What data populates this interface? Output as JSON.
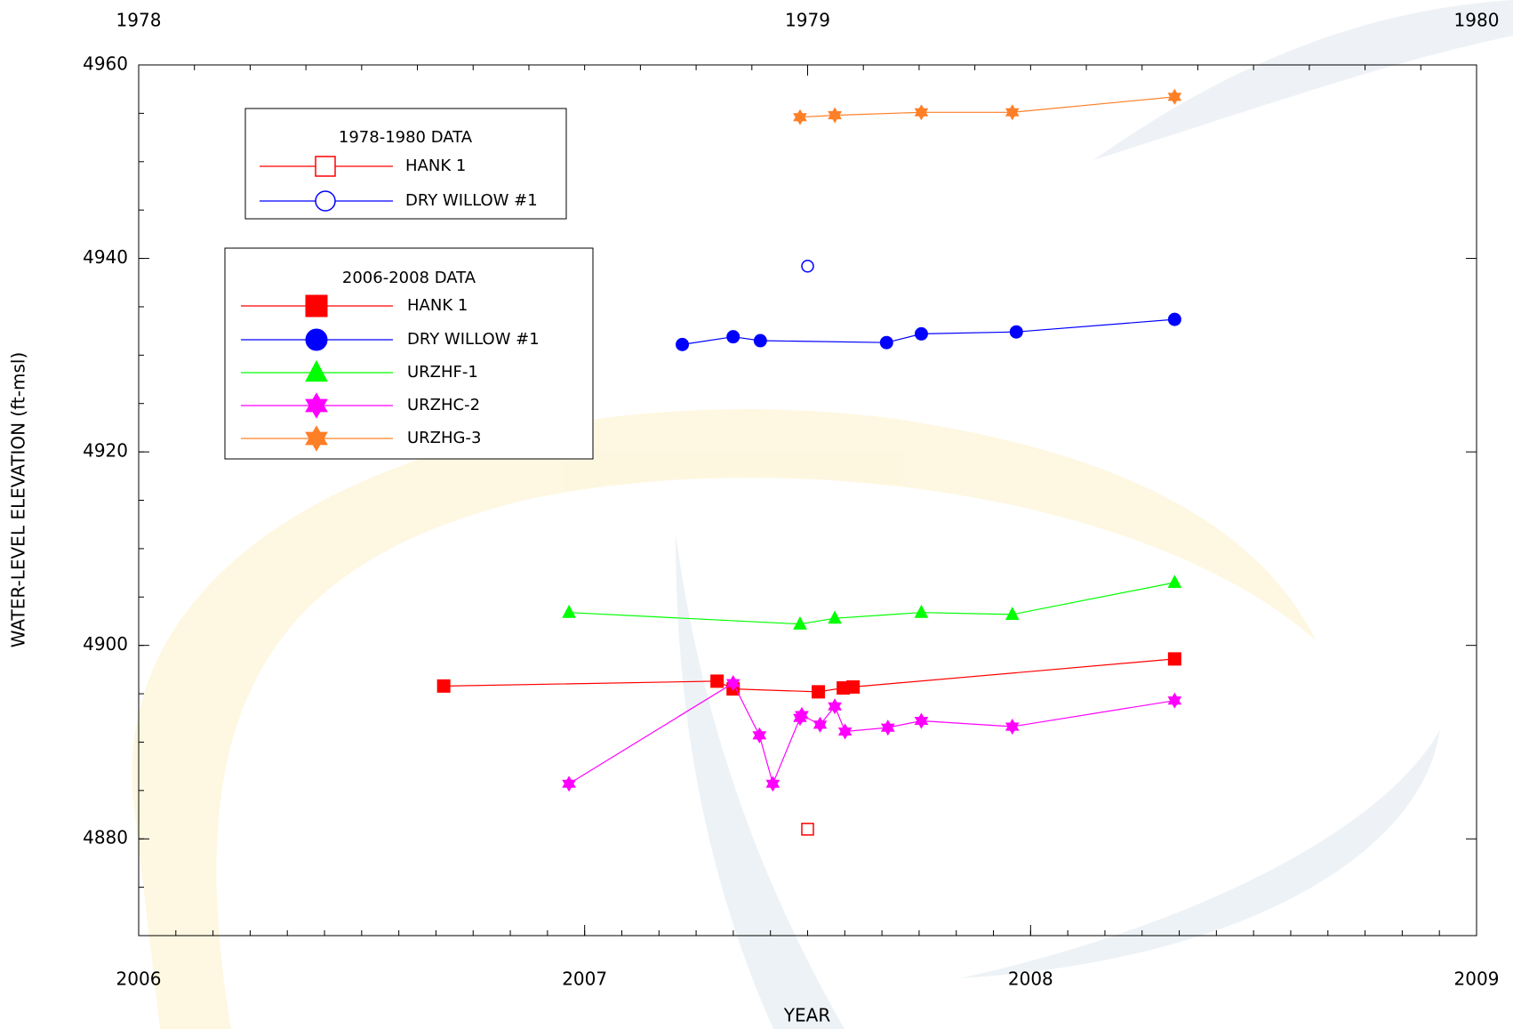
{
  "chart_data": {
    "type": "line",
    "x_label": "YEAR",
    "y_label": "WATER-LEVEL ELEVATION (ft-msl)",
    "xlim": [
      2006,
      2009
    ],
    "xticks": [
      2006,
      2007,
      2008,
      2009
    ],
    "x2lim": [
      1978,
      1980
    ],
    "x2ticks": [
      1978,
      1979,
      1980
    ],
    "ylim": [
      4870,
      4960
    ],
    "yticks": [
      4880,
      4900,
      4920,
      4940,
      4960
    ],
    "minor_ticks": {
      "x": 12,
      "x2": 12,
      "y": 4
    },
    "legend": "upper left",
    "groups": [
      {
        "title": "1978-1980 DATA",
        "axis": "x2",
        "series": [
          {
            "name": "HANK 1",
            "color": "#ff0000",
            "marker": "square",
            "filled": false,
            "x": [
              1979.0
            ],
            "values": [
              4881.0
            ]
          },
          {
            "name": "DRY WILLOW #1",
            "color": "#0000ff",
            "marker": "circle",
            "filled": false,
            "x": [
              1979.0
            ],
            "values": [
              4939.2
            ]
          }
        ]
      },
      {
        "title": "2006-2008 DATA",
        "axis": "x",
        "series": [
          {
            "name": "HANK 1",
            "color": "#ff0000",
            "marker": "square",
            "filled": true,
            "x": [
              2006.684,
              2007.297,
              2007.333,
              2007.524,
              2007.58,
              2007.602,
              2008.323
            ],
            "values": [
              4895.8,
              4896.3,
              4895.5,
              4895.2,
              4895.6,
              4895.7,
              4898.6
            ]
          },
          {
            "name": "DRY WILLOW #1",
            "color": "#0000ff",
            "marker": "circle",
            "filled": true,
            "x": [
              2007.219,
              2007.333,
              2007.394,
              2007.677,
              2007.755,
              2007.968,
              2008.323
            ],
            "values": [
              4931.1,
              4931.9,
              4931.5,
              4931.3,
              4932.2,
              4932.4,
              4933.7
            ]
          },
          {
            "name": "URZHF-1",
            "color": "#00ff00",
            "marker": "triangle",
            "filled": true,
            "x": [
              2006.965,
              2007.483,
              2007.561,
              2007.755,
              2007.959,
              2008.323
            ],
            "values": [
              4903.4,
              4902.2,
              4902.8,
              4903.4,
              4903.2,
              4906.5
            ]
          },
          {
            "name": "URZHC-2",
            "color": "#ff00ff",
            "marker": "star6",
            "filled": true,
            "x": [
              2006.965,
              2007.333,
              2007.392,
              2007.422,
              2007.483,
              2007.487,
              2007.528,
              2007.561,
              2007.584,
              2007.68,
              2007.755,
              2007.959,
              2008.323
            ],
            "values": [
              4885.7,
              4896.1,
              4890.7,
              4885.7,
              4892.5,
              4892.8,
              4891.8,
              4893.7,
              4891.1,
              4891.5,
              4892.2,
              4891.6,
              4894.3
            ]
          },
          {
            "name": "URZHG-3",
            "color": "#ff7f27",
            "marker": "star6",
            "filled": true,
            "x": [
              2007.483,
              2007.561,
              2007.755,
              2007.959,
              2008.323
            ],
            "values": [
              4954.6,
              4954.8,
              4955.1,
              4955.1,
              4956.7
            ]
          }
        ]
      }
    ]
  }
}
